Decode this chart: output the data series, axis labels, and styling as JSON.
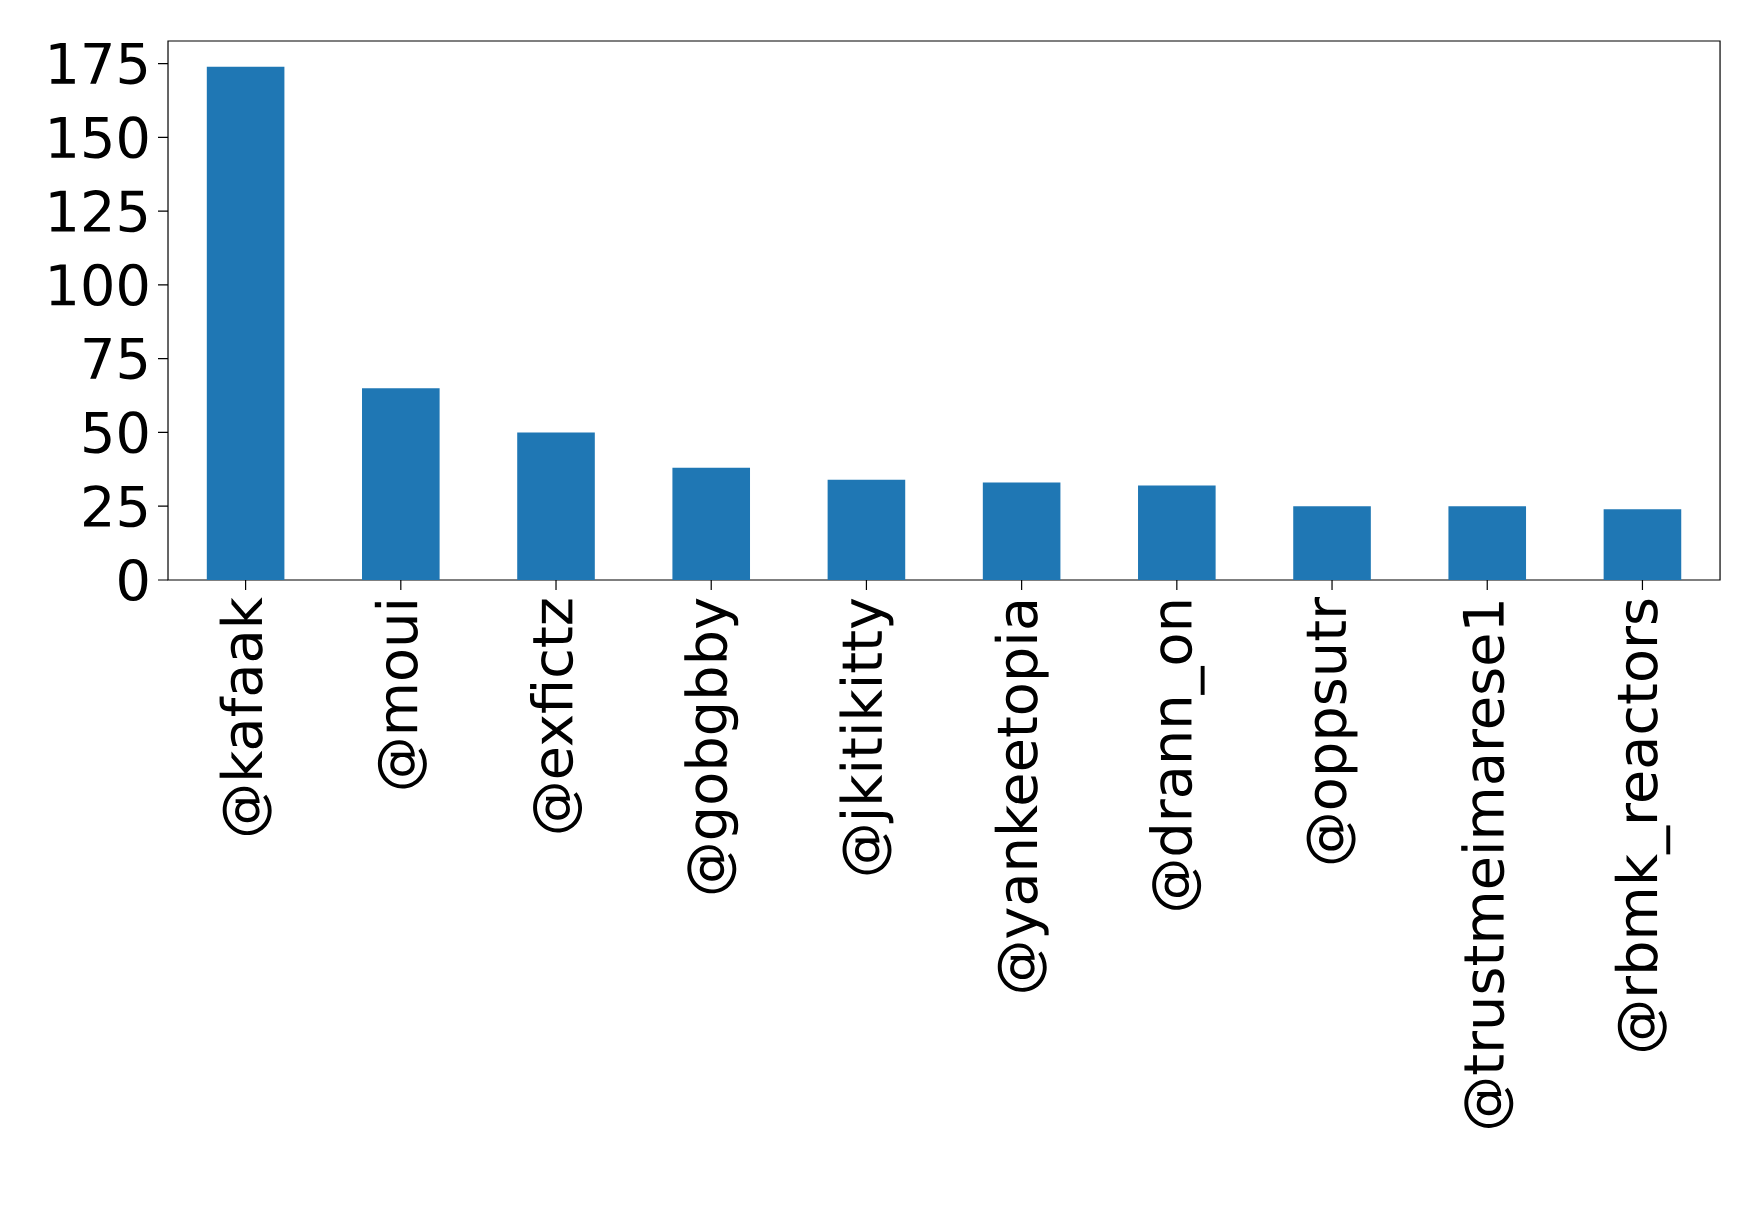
{
  "chart_data": {
    "type": "bar",
    "categories": [
      "@kafaak",
      "@moui",
      "@exfictz",
      "@gobgbby",
      "@jkitikitty",
      "@yankeetopia",
      "@drann_on",
      "@oppsutr",
      "@trustmeimarese1",
      "@rbmk_reactors"
    ],
    "values": [
      174,
      65,
      50,
      38,
      34,
      33,
      32,
      25,
      25,
      24
    ],
    "color": "#1f77b4",
    "ylim": [
      0,
      182.7
    ],
    "yticks": [
      0,
      25,
      50,
      75,
      100,
      125,
      150,
      175
    ],
    "grid": false
  }
}
